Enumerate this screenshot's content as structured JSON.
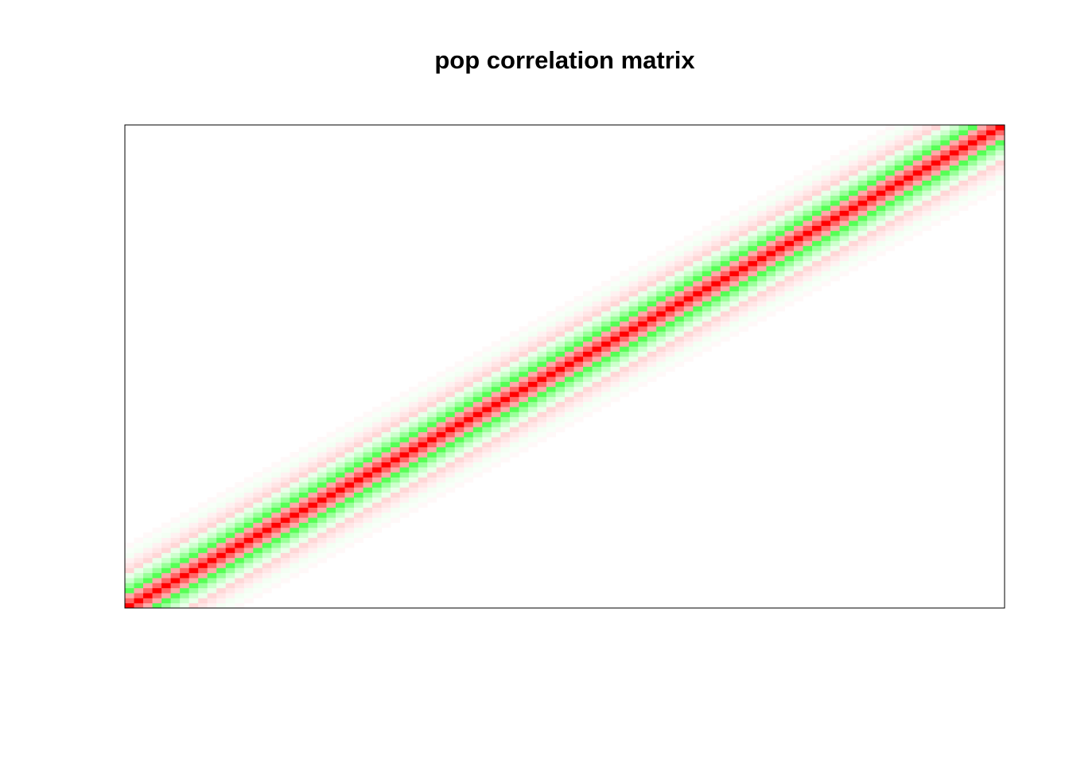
{
  "chart_data": {
    "type": "heatmap",
    "title": "pop correlation matrix",
    "xlabel": "",
    "ylabel": "",
    "axes_shown": false,
    "grid": false,
    "legend": "none",
    "matrix_size": 96,
    "structure": "banded correlation matrix; value depends on lag |i-j|",
    "band_by_lag": [
      {
        "lag": 0,
        "color": "#ff0000"
      },
      {
        "lag": 1,
        "color": "#ff6666"
      },
      {
        "lag": 2,
        "color": "#ffaaaa"
      },
      {
        "lag": 3,
        "color": "#55ff55"
      },
      {
        "lag": 4,
        "color": "#99ff99"
      },
      {
        "lag": 5,
        "color": "#ccffcc"
      },
      {
        "lag": 6,
        "color": "#eaffea"
      },
      {
        "lag": 7,
        "color": "#ffd6d6"
      },
      {
        "lag": 8,
        "color": "#ffe6e6"
      },
      {
        "lag": 9,
        "color": "#fff1f1"
      },
      {
        "lag": 10,
        "color": "#f3fff3"
      },
      {
        "lag": 11,
        "color": "#f8fff8"
      },
      {
        "lag": 12,
        "color": "#fff8f8"
      }
    ],
    "colors": {
      "positive": "#ff0000",
      "negative": "#00ff00",
      "zero": "#ffffff",
      "frame": "#000000"
    }
  }
}
